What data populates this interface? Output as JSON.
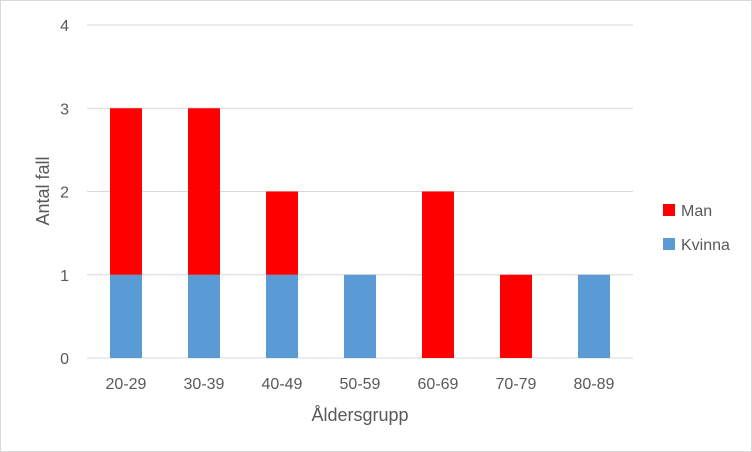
{
  "chart_data": {
    "type": "bar",
    "stacked": true,
    "categories": [
      "20-29",
      "30-39",
      "40-49",
      "50-59",
      "60-69",
      "70-79",
      "80-89"
    ],
    "series": [
      {
        "name": "Kvinna",
        "color": "#5b9bd5",
        "values": [
          1,
          1,
          1,
          1,
          0,
          0,
          1
        ]
      },
      {
        "name": "Man",
        "color": "#ff0000",
        "values": [
          2,
          2,
          1,
          0,
          2,
          1,
          0
        ]
      }
    ],
    "title": "",
    "xlabel": "Åldersgrupp",
    "ylabel": "Antal fall",
    "ylim": [
      0,
      4
    ],
    "yticks": [
      "0",
      "1",
      "2",
      "3",
      "4"
    ],
    "grid": true,
    "legend_position": "right"
  }
}
